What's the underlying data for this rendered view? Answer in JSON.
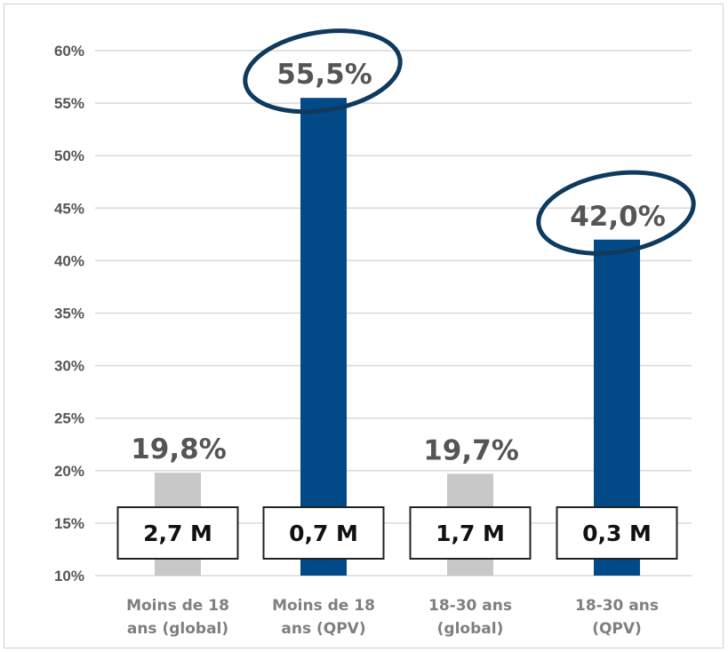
{
  "chart_data": {
    "type": "bar",
    "categories": [
      [
        "Moins de 18",
        "ans (global)"
      ],
      [
        "Moins de 18",
        "ans (QPV)"
      ],
      [
        "18-30 ans",
        "(global)"
      ],
      [
        "18-30 ans",
        "(QPV)"
      ]
    ],
    "values": [
      19.8,
      55.5,
      19.7,
      42.0
    ],
    "value_labels": [
      "19,8%",
      "55,5%",
      "19,7%",
      "42,0%"
    ],
    "population_labels": [
      "2,7 M",
      "0,7 M",
      "1,7 M",
      "0,3 M"
    ],
    "bar_colors": [
      "#c8c8c8",
      "#024a87",
      "#c8c8c8",
      "#024a87"
    ],
    "highlighted": [
      false,
      true,
      false,
      true
    ],
    "highlight_color": "#0f3a5e",
    "ylim": [
      10,
      60
    ],
    "yticks": [
      10,
      15,
      20,
      25,
      30,
      35,
      40,
      45,
      50,
      55,
      60
    ],
    "ytick_labels": [
      "10%",
      "15%",
      "20%",
      "25%",
      "30%",
      "35%",
      "40%",
      "45%",
      "50%",
      "55%",
      "60%"
    ],
    "grid": true,
    "title": "",
    "xlabel": "",
    "ylabel": ""
  }
}
